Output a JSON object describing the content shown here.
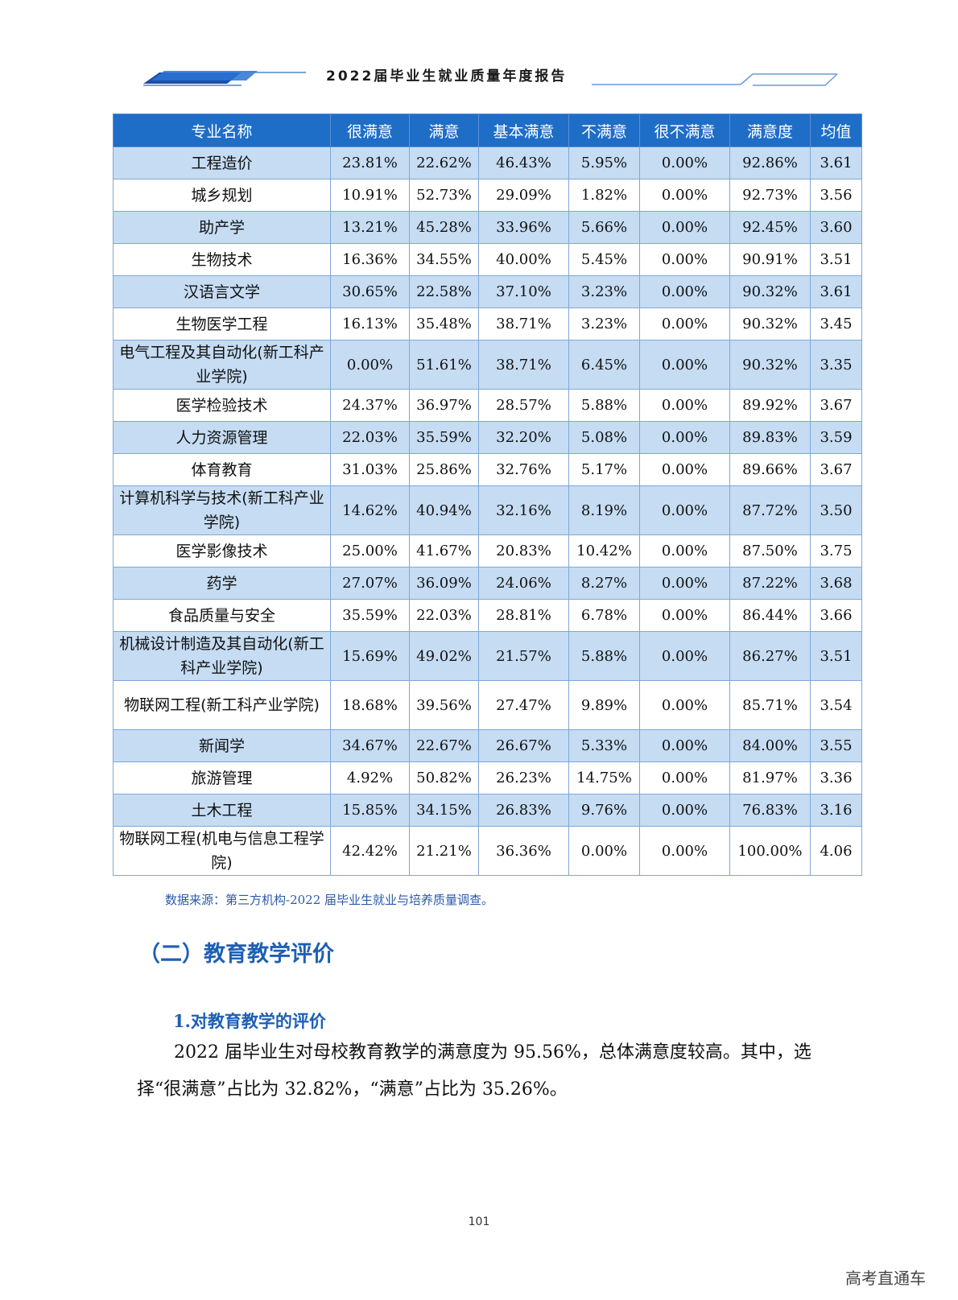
{
  "header": {
    "title": "2022届毕业生就业质量年度报告"
  },
  "table": {
    "headers": [
      "专业名称",
      "很满意",
      "满意",
      "基本满意",
      "不满意",
      "很不满意",
      "满意度",
      "均值"
    ],
    "rows": [
      {
        "name": "工程造价",
        "cells": [
          "23.81%",
          "22.62%",
          "46.43%",
          "5.95%",
          "0.00%",
          "92.86%",
          "3.61"
        ]
      },
      {
        "name": "城乡规划",
        "cells": [
          "10.91%",
          "52.73%",
          "29.09%",
          "1.82%",
          "0.00%",
          "92.73%",
          "3.56"
        ]
      },
      {
        "name": "助产学",
        "cells": [
          "13.21%",
          "45.28%",
          "33.96%",
          "5.66%",
          "0.00%",
          "92.45%",
          "3.60"
        ]
      },
      {
        "name": "生物技术",
        "cells": [
          "16.36%",
          "34.55%",
          "40.00%",
          "5.45%",
          "0.00%",
          "90.91%",
          "3.51"
        ]
      },
      {
        "name": "汉语言文学",
        "cells": [
          "30.65%",
          "22.58%",
          "37.10%",
          "3.23%",
          "0.00%",
          "90.32%",
          "3.61"
        ]
      },
      {
        "name": "生物医学工程",
        "cells": [
          "16.13%",
          "35.48%",
          "38.71%",
          "3.23%",
          "0.00%",
          "90.32%",
          "3.45"
        ]
      },
      {
        "name": "电气工程及其自动化(新工科产业学院)",
        "cells": [
          "0.00%",
          "51.61%",
          "38.71%",
          "6.45%",
          "0.00%",
          "90.32%",
          "3.35"
        ]
      },
      {
        "name": "医学检验技术",
        "cells": [
          "24.37%",
          "36.97%",
          "28.57%",
          "5.88%",
          "0.00%",
          "89.92%",
          "3.67"
        ]
      },
      {
        "name": "人力资源管理",
        "cells": [
          "22.03%",
          "35.59%",
          "32.20%",
          "5.08%",
          "0.00%",
          "89.83%",
          "3.59"
        ]
      },
      {
        "name": "体育教育",
        "cells": [
          "31.03%",
          "25.86%",
          "32.76%",
          "5.17%",
          "0.00%",
          "89.66%",
          "3.67"
        ]
      },
      {
        "name": "计算机科学与技术(新工科产业学院)",
        "cells": [
          "14.62%",
          "40.94%",
          "32.16%",
          "8.19%",
          "0.00%",
          "87.72%",
          "3.50"
        ]
      },
      {
        "name": "医学影像技术",
        "cells": [
          "25.00%",
          "41.67%",
          "20.83%",
          "10.42%",
          "0.00%",
          "87.50%",
          "3.75"
        ]
      },
      {
        "name": "药学",
        "cells": [
          "27.07%",
          "36.09%",
          "24.06%",
          "8.27%",
          "0.00%",
          "87.22%",
          "3.68"
        ]
      },
      {
        "name": "食品质量与安全",
        "cells": [
          "35.59%",
          "22.03%",
          "28.81%",
          "6.78%",
          "0.00%",
          "86.44%",
          "3.66"
        ]
      },
      {
        "name": "机械设计制造及其自动化(新工科产业学院)",
        "cells": [
          "15.69%",
          "49.02%",
          "21.57%",
          "5.88%",
          "0.00%",
          "86.27%",
          "3.51"
        ]
      },
      {
        "name": "物联网工程(新工科产业学院)",
        "cells": [
          "18.68%",
          "39.56%",
          "27.47%",
          "9.89%",
          "0.00%",
          "85.71%",
          "3.54"
        ]
      },
      {
        "name": "新闻学",
        "cells": [
          "34.67%",
          "22.67%",
          "26.67%",
          "5.33%",
          "0.00%",
          "84.00%",
          "3.55"
        ]
      },
      {
        "name": "旅游管理",
        "cells": [
          "4.92%",
          "50.82%",
          "26.23%",
          "14.75%",
          "0.00%",
          "81.97%",
          "3.36"
        ]
      },
      {
        "name": "土木工程",
        "cells": [
          "15.85%",
          "34.15%",
          "26.83%",
          "9.76%",
          "0.00%",
          "76.83%",
          "3.16"
        ]
      },
      {
        "name": "物联网工程(机电与信息工程学院)",
        "cells": [
          "42.42%",
          "21.21%",
          "36.36%",
          "0.00%",
          "0.00%",
          "100.00%",
          "4.06"
        ]
      }
    ]
  },
  "source_note": "数据来源：第三方机构-2022 届毕业生就业与培养质量调查。",
  "section_title": "（二）教育教学评价",
  "subheading": "1.对教育教学的评价",
  "paragraph": "2022 届毕业生对母校教育教学的满意度为 95.56%，总体满意度较高。其中，选择“很满意”占比为 32.82%，“满意”占比为 35.26%。",
  "page_number": "101",
  "watermark": "高考直通车",
  "colors": {
    "header_blue": "#1e6ec8",
    "row_alt": "#c5dcf3",
    "accent_text": "#1e5fb3"
  }
}
